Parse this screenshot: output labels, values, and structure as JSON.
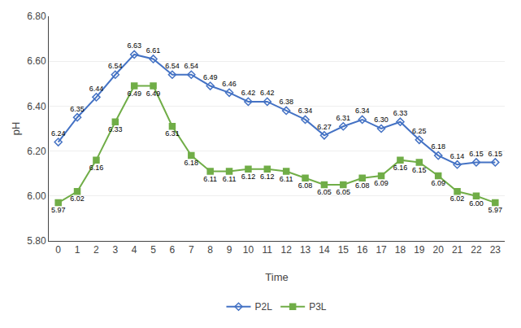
{
  "chart_data": {
    "type": "line",
    "xlabel": "Time",
    "ylabel": "pH",
    "x": [
      0,
      1,
      2,
      3,
      4,
      5,
      6,
      7,
      8,
      9,
      10,
      11,
      12,
      13,
      14,
      15,
      16,
      17,
      18,
      19,
      20,
      21,
      22,
      23
    ],
    "xlim": [
      -0.5,
      23.5
    ],
    "xticks": [
      0,
      1,
      2,
      3,
      4,
      5,
      6,
      7,
      8,
      9,
      10,
      11,
      12,
      13,
      14,
      15,
      16,
      17,
      18,
      19,
      20,
      21,
      22,
      23
    ],
    "ylim": [
      5.8,
      6.8
    ],
    "yticks": [
      {
        "value": 5.8,
        "label": "5.80"
      },
      {
        "value": 6.0,
        "label": "6.00"
      },
      {
        "value": 6.2,
        "label": "6.20"
      },
      {
        "value": 6.4,
        "label": "6.40"
      },
      {
        "value": 6.6,
        "label": "6.60"
      },
      {
        "value": 6.8,
        "label": "6.80"
      }
    ],
    "grid": true,
    "legend": "bottom",
    "data_labels": true,
    "series": [
      {
        "name": "P2L",
        "color": "#4472C4",
        "marker": "diamond-open",
        "values": [
          6.24,
          6.35,
          6.44,
          6.54,
          6.63,
          6.61,
          6.54,
          6.54,
          6.49,
          6.46,
          6.42,
          6.42,
          6.38,
          6.34,
          6.27,
          6.31,
          6.34,
          6.3,
          6.33,
          6.25,
          6.18,
          6.14,
          6.15,
          6.15
        ],
        "value_labels": [
          "6.24",
          "6.35",
          "6.44",
          "6.54",
          "6.63",
          "6.61",
          "6.54",
          "6.54",
          "6.49",
          "6.46",
          "6.42",
          "6.42",
          "6.38",
          "6.34",
          "6.27",
          "6.31",
          "6.34",
          "6.30",
          "6.33",
          "6.25",
          "6.18",
          "6.14",
          "6.15",
          "6.15"
        ]
      },
      {
        "name": "P3L",
        "color": "#70AD47",
        "marker": "square",
        "values": [
          5.97,
          6.02,
          6.16,
          6.33,
          6.49,
          6.49,
          6.31,
          6.18,
          6.11,
          6.11,
          6.12,
          6.12,
          6.11,
          6.08,
          6.05,
          6.05,
          6.08,
          6.09,
          6.16,
          6.15,
          6.09,
          6.02,
          6.0,
          5.97
        ],
        "value_labels": [
          "5.97",
          "6.02",
          "6.16",
          "6.33",
          "6.49",
          "6.49",
          "6.31",
          "6.18",
          "6.11",
          "6.11",
          "6.12",
          "6.12",
          "6.11",
          "6.08",
          "6.05",
          "6.05",
          "6.08",
          "6.09",
          "6.16",
          "6.15",
          "6.09",
          "6.02",
          "6.00",
          "5.97"
        ]
      }
    ]
  }
}
